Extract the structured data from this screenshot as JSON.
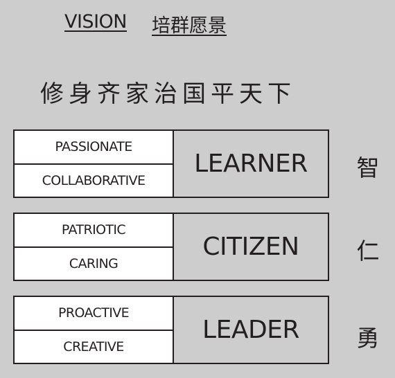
{
  "header": {
    "vision_en": "VISION",
    "vision_zh": "培群愿景"
  },
  "motto": "修身齐家治国平天下",
  "blocks": [
    {
      "traits": [
        "PASSIONATE",
        "COLLABORATIVE"
      ],
      "role": "LEARNER",
      "virtue": "智"
    },
    {
      "traits": [
        "PATRIOTIC",
        "CARING"
      ],
      "role": "CITIZEN",
      "virtue": "仁"
    },
    {
      "traits": [
        "PROACTIVE",
        "CREATIVE"
      ],
      "role": "LEADER",
      "virtue": "勇"
    }
  ],
  "colors": {
    "background": "#cdcdcd",
    "cell": "#ffffff",
    "ink": "#231f20"
  }
}
